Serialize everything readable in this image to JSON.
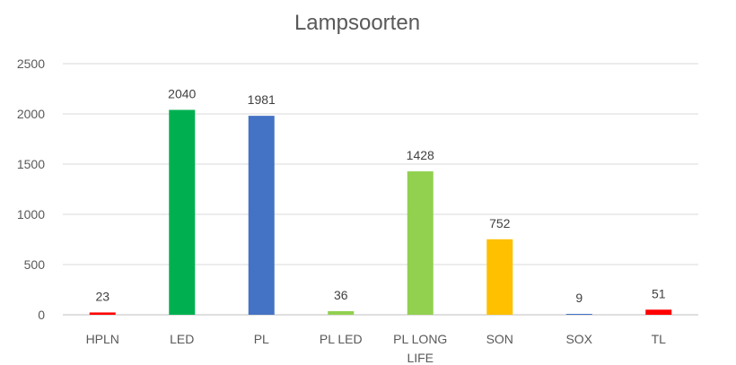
{
  "chart_data": {
    "type": "bar",
    "title": "Lampsoorten",
    "xlabel": "",
    "ylabel": "",
    "categories": [
      "HPLN",
      "LED",
      "PL",
      "PL LED",
      "PL LONG LIFE",
      "SON",
      "SOX",
      "TL"
    ],
    "values": [
      23,
      2040,
      1981,
      36,
      1428,
      752,
      9,
      51
    ],
    "colors": [
      "#FF0000",
      "#00B050",
      "#4472C4",
      "#92D050",
      "#92D050",
      "#FFC000",
      "#4472C4",
      "#FF0000"
    ],
    "ylim": [
      0,
      2500
    ],
    "yticks": [
      0,
      500,
      1000,
      1500,
      2000,
      2500
    ],
    "grid": true,
    "legend": "none",
    "data_labels": true
  }
}
